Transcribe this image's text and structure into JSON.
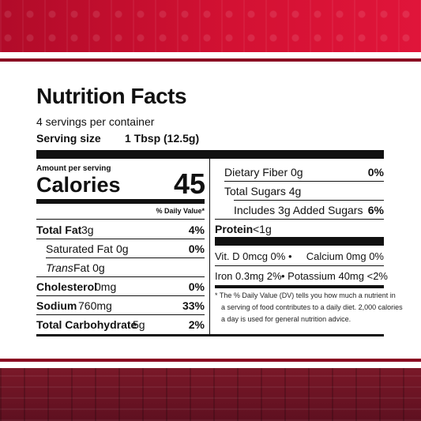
{
  "label": {
    "title": "Nutrition Facts",
    "servings": "4 servings per container",
    "serving_size_label": "Serving size",
    "serving_size_value": "1 Tbsp (12.5g)",
    "amount_per_serving": "Amount per serving",
    "calories_label": "Calories",
    "calories_value": "45",
    "daily_value_header": "% Daily Value*",
    "left_rows": [
      {
        "name": "Total Fat",
        "amount": "3g",
        "dv": "4%"
      },
      {
        "name": "Saturated Fat",
        "amount": "0g",
        "dv": "0%"
      },
      {
        "name": "Trans",
        "name_rest": " Fat 0g",
        "dv": ""
      },
      {
        "name": "Cholesterol",
        "amount": "0mg",
        "dv": "0%"
      },
      {
        "name": "Sodium",
        "amount": "760mg",
        "dv": "33%"
      },
      {
        "name": "Total Carbohydrate",
        "amount": "5g",
        "dv": "2%"
      }
    ],
    "right_rows": [
      {
        "text": "Dietary Fiber 0g",
        "dv": "0%"
      },
      {
        "text": "Total Sugars 4g",
        "dv": ""
      },
      {
        "text": "Includes 3g Added Sugars",
        "dv": "6%"
      }
    ],
    "protein_label": "Protein",
    "protein_amount": "<1g",
    "vitamins": [
      {
        "left": "Vit. D 0mcg 0% •",
        "right": "Calcium 0mg 0%"
      },
      {
        "left": "Iron 0.3mg 2%",
        "right": "• Potassium 40mg <2%"
      }
    ],
    "footnote_line1": "* The % Daily Value (DV) tells you how much a nutrient in",
    "footnote_line2": "a serving of food contributes to a daily diet. 2,000 calories",
    "footnote_line3": "a day is used for general nutrition advice."
  }
}
